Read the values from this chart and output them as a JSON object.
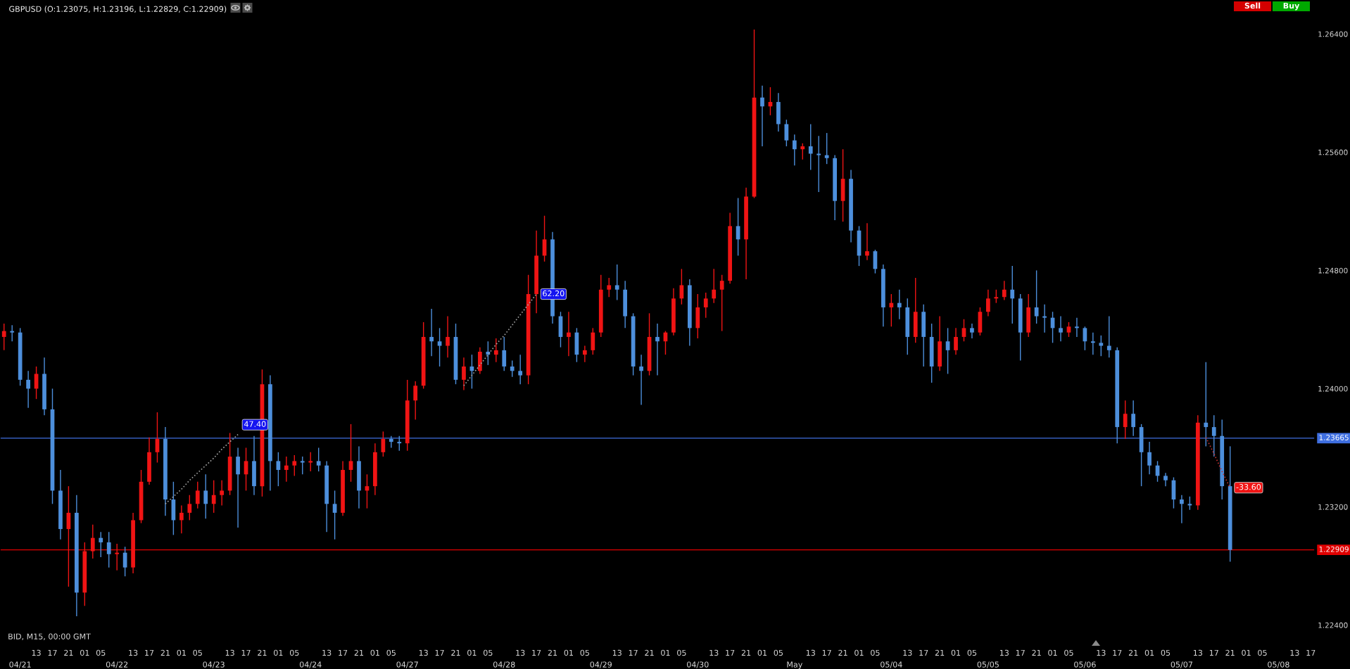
{
  "chart_data": {
    "type": "candlestick",
    "title": "GBPUSD (O:1.23075, H:1.23196, L:1.22829, C:1.22909)",
    "annotations": [
      "BID, M15, 00:00 GMT",
      "Sell",
      "Buy",
      {
        "text": "47.40",
        "y": 1.2369
      },
      {
        "text": "62.20",
        "y": 1.2464
      },
      {
        "text": "-33.60",
        "y": 1.2333
      }
    ],
    "categories": [
      null,
      null,
      "04/21",
      null,
      "13",
      null,
      "17",
      null,
      "21",
      null,
      "01",
      null,
      "05",
      null,
      "04/22",
      null,
      "13",
      null,
      "17",
      null,
      "21",
      null,
      "01",
      null,
      "05",
      null,
      "04/23",
      null,
      "13",
      null,
      "17",
      null,
      "21",
      null,
      "01",
      null,
      "05",
      null,
      "04/24",
      null,
      "13",
      null,
      "17",
      null,
      "21",
      null,
      "01",
      null,
      "05",
      null,
      "04/27",
      null,
      "13",
      null,
      "17",
      null,
      "21",
      null,
      "01",
      null,
      "05",
      null,
      "04/28",
      null,
      "13",
      null,
      "17",
      null,
      "21",
      null,
      "01",
      null,
      "05",
      null,
      "04/29",
      null,
      "13",
      null,
      "17",
      null,
      "21",
      null,
      "01",
      null,
      "05",
      null,
      "04/30",
      null,
      "13",
      null,
      "17",
      null,
      "21",
      null,
      "01",
      null,
      "05",
      null,
      "May",
      null,
      "13",
      null,
      "17",
      null,
      "21",
      null,
      "01",
      null,
      "05",
      null,
      "05/04",
      null,
      "13",
      null,
      "17",
      null,
      "21",
      null,
      "01",
      null,
      "05",
      null,
      "05/05",
      null,
      "13",
      null,
      "17",
      null,
      "21",
      null,
      "01",
      null,
      "05",
      null,
      "05/06",
      null,
      "13",
      null,
      "17",
      null,
      "21",
      null,
      "01",
      null,
      "05",
      null,
      "05/07",
      null,
      "13",
      null,
      "17",
      null,
      "21",
      null,
      "01",
      null,
      "05",
      null,
      "05/08",
      null,
      "13",
      null,
      "17"
    ],
    "ohlc": [
      [
        1.2435,
        1.2444,
        1.2426,
        1.2439
      ],
      [
        1.2439,
        1.2443,
        1.2432,
        1.2438
      ],
      [
        1.2438,
        1.2441,
        1.2402,
        1.2406
      ],
      [
        1.2406,
        1.2412,
        1.2387,
        1.24
      ],
      [
        1.24,
        1.2415,
        1.2393,
        1.241
      ],
      [
        1.241,
        1.2421,
        1.2382,
        1.2386
      ],
      [
        1.2386,
        1.24,
        1.2322,
        1.2331
      ],
      [
        1.2331,
        1.2345,
        1.2298,
        1.2305
      ],
      [
        1.2305,
        1.2334,
        1.2266,
        1.2316
      ],
      [
        1.2316,
        1.2328,
        1.2246,
        1.2262
      ],
      [
        1.2262,
        1.2296,
        1.2253,
        1.229
      ],
      [
        1.229,
        1.2308,
        1.2285,
        1.2299
      ],
      [
        1.2299,
        1.2303,
        1.2286,
        1.2296
      ],
      [
        1.2296,
        1.2303,
        1.2279,
        1.2288
      ],
      [
        1.2288,
        1.2295,
        1.2277,
        1.2289
      ],
      [
        1.2289,
        1.2293,
        1.2273,
        1.2279
      ],
      [
        1.2279,
        1.2316,
        1.2275,
        1.2311
      ],
      [
        1.2311,
        1.2345,
        1.2309,
        1.2337
      ],
      [
        1.2337,
        1.2367,
        1.2335,
        1.2357
      ],
      [
        1.2357,
        1.2384,
        1.235,
        1.2366
      ],
      [
        1.2366,
        1.2374,
        1.2314,
        1.2325
      ],
      [
        1.2325,
        1.2337,
        1.2301,
        1.2311
      ],
      [
        1.2311,
        1.2321,
        1.2302,
        1.2316
      ],
      [
        1.2316,
        1.2328,
        1.2311,
        1.2322
      ],
      [
        1.2322,
        1.2337,
        1.2319,
        1.2331
      ],
      [
        1.2331,
        1.2342,
        1.2312,
        1.2322
      ],
      [
        1.2322,
        1.2338,
        1.2316,
        1.2328
      ],
      [
        1.2328,
        1.2338,
        1.2321,
        1.2331
      ],
      [
        1.2331,
        1.237,
        1.2328,
        1.2354
      ],
      [
        1.2354,
        1.236,
        1.2306,
        1.2342
      ],
      [
        1.2342,
        1.236,
        1.2331,
        1.2351
      ],
      [
        1.2351,
        1.2368,
        1.2328,
        1.2334
      ],
      [
        1.2334,
        1.2413,
        1.2327,
        1.2403
      ],
      [
        1.2403,
        1.2409,
        1.2331,
        1.2351
      ],
      [
        1.2351,
        1.2357,
        1.2334,
        1.2345
      ],
      [
        1.2345,
        1.2354,
        1.2337,
        1.2348
      ],
      [
        1.2348,
        1.2355,
        1.2341,
        1.2351
      ],
      [
        1.2351,
        1.2354,
        1.2342,
        1.235
      ],
      [
        1.235,
        1.2357,
        1.2344,
        1.2351
      ],
      [
        1.2351,
        1.236,
        1.2344,
        1.2348
      ],
      [
        1.2348,
        1.2351,
        1.2303,
        1.2322
      ],
      [
        1.2322,
        1.2331,
        1.2298,
        1.2316
      ],
      [
        1.2316,
        1.2351,
        1.2314,
        1.2345
      ],
      [
        1.2345,
        1.2376,
        1.2337,
        1.2351
      ],
      [
        1.2351,
        1.2361,
        1.2319,
        1.2331
      ],
      [
        1.2331,
        1.2342,
        1.2319,
        1.2334
      ],
      [
        1.2334,
        1.2363,
        1.2328,
        1.2357
      ],
      [
        1.2357,
        1.2371,
        1.2354,
        1.2366
      ],
      [
        1.2366,
        1.2368,
        1.236,
        1.2364
      ],
      [
        1.2364,
        1.2368,
        1.2358,
        1.2363
      ],
      [
        1.2363,
        1.2406,
        1.2358,
        1.2392
      ],
      [
        1.2392,
        1.2405,
        1.2379,
        1.2402
      ],
      [
        1.2402,
        1.2445,
        1.24,
        1.2435
      ],
      [
        1.2435,
        1.2454,
        1.2422,
        1.2432
      ],
      [
        1.2432,
        1.2441,
        1.2415,
        1.2429
      ],
      [
        1.2429,
        1.2449,
        1.2421,
        1.2435
      ],
      [
        1.2435,
        1.2444,
        1.2403,
        1.2406
      ],
      [
        1.2406,
        1.2421,
        1.2399,
        1.2415
      ],
      [
        1.2415,
        1.2423,
        1.24,
        1.2412
      ],
      [
        1.2412,
        1.2428,
        1.241,
        1.2425
      ],
      [
        1.2425,
        1.2432,
        1.2416,
        1.2423
      ],
      [
        1.2423,
        1.2434,
        1.2418,
        1.2426
      ],
      [
        1.2426,
        1.2435,
        1.2412,
        1.2415
      ],
      [
        1.2415,
        1.2419,
        1.2408,
        1.2412
      ],
      [
        1.2412,
        1.2423,
        1.2403,
        1.2409
      ],
      [
        1.2409,
        1.2477,
        1.2403,
        1.2464
      ],
      [
        1.2464,
        1.2507,
        1.2451,
        1.249
      ],
      [
        1.249,
        1.2517,
        1.2486,
        1.2501
      ],
      [
        1.2501,
        1.2506,
        1.2444,
        1.2449
      ],
      [
        1.2449,
        1.2452,
        1.2428,
        1.2435
      ],
      [
        1.2435,
        1.2452,
        1.2422,
        1.2438
      ],
      [
        1.2438,
        1.2441,
        1.2418,
        1.2423
      ],
      [
        1.2423,
        1.2429,
        1.2418,
        1.2426
      ],
      [
        1.2426,
        1.2441,
        1.2423,
        1.2438
      ],
      [
        1.2438,
        1.2477,
        1.2435,
        1.2467
      ],
      [
        1.2467,
        1.2475,
        1.2462,
        1.247
      ],
      [
        1.247,
        1.2484,
        1.246,
        1.2467
      ],
      [
        1.2467,
        1.2473,
        1.2441,
        1.2449
      ],
      [
        1.2449,
        1.2451,
        1.2409,
        1.2415
      ],
      [
        1.2415,
        1.2423,
        1.2389,
        1.2412
      ],
      [
        1.2412,
        1.2451,
        1.2409,
        1.2435
      ],
      [
        1.2435,
        1.2444,
        1.2409,
        1.2432
      ],
      [
        1.2432,
        1.2439,
        1.2423,
        1.2438
      ],
      [
        1.2438,
        1.2468,
        1.2436,
        1.2461
      ],
      [
        1.2461,
        1.2481,
        1.2457,
        1.247
      ],
      [
        1.247,
        1.2474,
        1.2429,
        1.2441
      ],
      [
        1.2441,
        1.2464,
        1.2434,
        1.2455
      ],
      [
        1.2455,
        1.2465,
        1.2448,
        1.2461
      ],
      [
        1.2461,
        1.2481,
        1.2458,
        1.2467
      ],
      [
        1.2467,
        1.2477,
        1.2439,
        1.2473
      ],
      [
        1.2473,
        1.2519,
        1.2471,
        1.251
      ],
      [
        1.251,
        1.2529,
        1.249,
        1.2501
      ],
      [
        1.2501,
        1.2536,
        1.2474,
        1.253
      ],
      [
        1.253,
        1.2643,
        1.2529,
        1.2597
      ],
      [
        1.2597,
        1.2605,
        1.2564,
        1.2591
      ],
      [
        1.2591,
        1.2604,
        1.2585,
        1.2594
      ],
      [
        1.2594,
        1.26,
        1.2574,
        1.2579
      ],
      [
        1.2579,
        1.2582,
        1.2564,
        1.2568
      ],
      [
        1.2568,
        1.2572,
        1.2551,
        1.2562
      ],
      [
        1.2562,
        1.2566,
        1.2555,
        1.2564
      ],
      [
        1.2564,
        1.2579,
        1.2548,
        1.2559
      ],
      [
        1.2559,
        1.2571,
        1.2533,
        1.2558
      ],
      [
        1.2558,
        1.2573,
        1.2552,
        1.2556
      ],
      [
        1.2556,
        1.2558,
        1.2514,
        1.2527
      ],
      [
        1.2527,
        1.2562,
        1.2513,
        1.2542
      ],
      [
        1.2542,
        1.2548,
        1.2499,
        1.2507
      ],
      [
        1.2507,
        1.251,
        1.2483,
        1.249
      ],
      [
        1.249,
        1.2512,
        1.2487,
        1.2493
      ],
      [
        1.2493,
        1.2494,
        1.2478,
        1.2481
      ],
      [
        1.2481,
        1.2484,
        1.2442,
        1.2455
      ],
      [
        1.2455,
        1.2464,
        1.2442,
        1.2458
      ],
      [
        1.2458,
        1.2467,
        1.2447,
        1.2455
      ],
      [
        1.2455,
        1.2461,
        1.2423,
        1.2435
      ],
      [
        1.2435,
        1.2475,
        1.2431,
        1.2452
      ],
      [
        1.2452,
        1.2457,
        1.2415,
        1.2435
      ],
      [
        1.2435,
        1.2444,
        1.2404,
        1.2415
      ],
      [
        1.2415,
        1.2449,
        1.2412,
        1.2432
      ],
      [
        1.2432,
        1.2441,
        1.241,
        1.2426
      ],
      [
        1.2426,
        1.2441,
        1.2423,
        1.2435
      ],
      [
        1.2435,
        1.2447,
        1.2432,
        1.2441
      ],
      [
        1.2441,
        1.2444,
        1.2434,
        1.2438
      ],
      [
        1.2438,
        1.2455,
        1.2436,
        1.2452
      ],
      [
        1.2452,
        1.2467,
        1.2449,
        1.2461
      ],
      [
        1.2461,
        1.2467,
        1.2458,
        1.2462
      ],
      [
        1.2462,
        1.2473,
        1.246,
        1.2467
      ],
      [
        1.2467,
        1.2483,
        1.2444,
        1.2461
      ],
      [
        1.2461,
        1.2464,
        1.2419,
        1.2438
      ],
      [
        1.2438,
        1.2464,
        1.2435,
        1.2455
      ],
      [
        1.2455,
        1.248,
        1.2444,
        1.2449
      ],
      [
        1.2449,
        1.2457,
        1.2438,
        1.2448
      ],
      [
        1.2448,
        1.2452,
        1.2431,
        1.2441
      ],
      [
        1.2441,
        1.2449,
        1.2432,
        1.2438
      ],
      [
        1.2438,
        1.2445,
        1.2435,
        1.2442
      ],
      [
        1.2442,
        1.2448,
        1.2435,
        1.2441
      ],
      [
        1.2441,
        1.2442,
        1.2426,
        1.2432
      ],
      [
        1.2432,
        1.2438,
        1.2423,
        1.2431
      ],
      [
        1.2431,
        1.2436,
        1.2422,
        1.2429
      ],
      [
        1.2429,
        1.2449,
        1.2421,
        1.2426
      ],
      [
        1.2426,
        1.2428,
        1.2363,
        1.2374
      ],
      [
        1.2374,
        1.2392,
        1.2366,
        1.2383
      ],
      [
        1.2383,
        1.2392,
        1.2368,
        1.2374
      ],
      [
        1.2374,
        1.2376,
        1.2334,
        1.2357
      ],
      [
        1.2357,
        1.2364,
        1.2342,
        1.2348
      ],
      [
        1.2348,
        1.2351,
        1.2337,
        1.2341
      ],
      [
        1.2341,
        1.2343,
        1.2334,
        1.2338
      ],
      [
        1.2338,
        1.234,
        1.2319,
        1.2325
      ],
      [
        1.2325,
        1.2328,
        1.2309,
        1.2322
      ],
      [
        1.2322,
        1.2327,
        1.2318,
        1.2321
      ],
      [
        1.2321,
        1.2382,
        1.2318,
        1.2377
      ],
      [
        1.2377,
        1.2418,
        1.2361,
        1.2374
      ],
      [
        1.2374,
        1.2382,
        1.2354,
        1.2368
      ],
      [
        1.2368,
        1.2379,
        1.2325,
        1.2334
      ],
      [
        1.2334,
        1.2361,
        1.22829,
        1.22909
      ],
      null,
      null,
      null,
      null,
      null,
      null,
      null,
      null,
      null,
      null
    ],
    "colors": [
      "#f01414",
      "#4d8fdc",
      "#4d8fdc",
      "#4d8fdc",
      "#f01414",
      "#4d8fdc",
      "#4d8fdc",
      "#4d8fdc",
      "#f01414",
      "#4d8fdc",
      "#f01414",
      "#f01414",
      "#4d8fdc",
      "#4d8fdc",
      "#f01414",
      "#4d8fdc",
      "#f01414",
      "#f01414",
      "#f01414",
      "#f01414",
      "#4d8fdc",
      "#4d8fdc",
      "#f01414",
      "#f01414",
      "#f01414",
      "#4d8fdc",
      "#f01414",
      "#f01414",
      "#f01414",
      "#4d8fdc",
      "#f01414",
      "#4d8fdc",
      "#f01414",
      "#4d8fdc",
      "#4d8fdc",
      "#f01414",
      "#f01414",
      "#4d8fdc",
      "#f01414",
      "#4d8fdc",
      "#4d8fdc",
      "#4d8fdc",
      "#f01414",
      "#f01414",
      "#4d8fdc",
      "#f01414",
      "#f01414",
      "#f01414",
      "#4d8fdc",
      "#4d8fdc",
      "#f01414",
      "#f01414",
      "#f01414",
      "#4d8fdc",
      "#4d8fdc",
      "#f01414",
      "#4d8fdc",
      "#f01414",
      "#4d8fdc",
      "#f01414",
      "#4d8fdc",
      "#f01414",
      "#4d8fdc",
      "#4d8fdc",
      "#4d8fdc",
      "#f01414",
      "#f01414",
      "#f01414",
      "#4d8fdc",
      "#4d8fdc",
      "#f01414",
      "#4d8fdc",
      "#f01414",
      "#f01414",
      "#f01414",
      "#f01414",
      "#4d8fdc",
      "#4d8fdc",
      "#4d8fdc",
      "#4d8fdc",
      "#f01414",
      "#4d8fdc",
      "#f01414",
      "#f01414",
      "#f01414",
      "#4d8fdc",
      "#f01414",
      "#f01414",
      "#f01414",
      "#f01414",
      "#f01414",
      "#4d8fdc",
      "#f01414",
      "#f01414",
      "#4d8fdc",
      "#f01414",
      "#4d8fdc",
      "#4d8fdc",
      "#4d8fdc",
      "#f01414",
      "#4d8fdc",
      "#4d8fdc",
      "#4d8fdc",
      "#4d8fdc",
      "#f01414",
      "#4d8fdc",
      "#4d8fdc",
      "#f01414",
      "#4d8fdc",
      "#4d8fdc",
      "#f01414",
      "#4d8fdc",
      "#4d8fdc",
      "#f01414",
      "#4d8fdc",
      "#4d8fdc",
      "#f01414",
      "#4d8fdc",
      "#f01414",
      "#f01414",
      "#4d8fdc",
      "#f01414",
      "#f01414",
      "#f01414",
      "#f01414",
      "#4d8fdc",
      "#4d8fdc",
      "#f01414",
      "#4d8fdc",
      "#4d8fdc",
      "#4d8fdc",
      "#4d8fdc",
      "#f01414",
      "#4d8fdc",
      "#4d8fdc",
      "#4d8fdc",
      "#4d8fdc",
      "#4d8fdc",
      "#4d8fdc",
      "#f01414",
      "#4d8fdc",
      "#4d8fdc",
      "#4d8fdc",
      "#4d8fdc",
      "#4d8fdc",
      "#4d8fdc",
      "#4d8fdc",
      "#4d8fdc",
      "#f01414",
      "#4d8fdc",
      "#4d8fdc",
      "#4d8fdc",
      "#4d8fdc",
      null,
      null,
      null,
      null,
      null,
      null,
      null,
      null,
      null,
      null
    ],
    "series": [
      {
        "type": "line",
        "color": "#a0a0a0",
        "line_style": "dotted",
        "values": [
          null,
          null,
          null,
          null,
          null,
          null,
          null,
          null,
          null,
          null,
          null,
          null,
          null,
          null,
          null,
          null,
          null,
          null,
          null,
          null,
          1.2322,
          1.2327,
          1.2332,
          1.2338,
          1.2343,
          1.2348,
          1.2353,
          1.2359,
          1.2364,
          1.2369,
          null,
          null,
          null,
          null,
          null,
          null,
          null,
          null,
          null,
          null,
          null,
          null,
          null,
          null,
          null,
          null,
          null,
          null,
          null,
          null,
          null,
          null,
          null,
          null,
          null,
          null,
          null,
          null,
          null,
          null,
          null,
          null,
          null,
          null,
          null,
          null,
          null,
          null,
          null,
          null,
          null,
          null,
          null,
          null,
          null,
          null,
          null,
          null,
          null,
          null,
          null,
          null,
          null,
          null,
          null,
          null,
          null,
          null,
          null,
          null,
          null,
          null,
          null,
          null,
          null,
          null,
          null,
          null,
          null,
          null,
          null,
          null,
          null,
          null,
          null,
          null,
          null,
          null,
          null,
          null,
          null,
          null,
          null,
          null,
          null,
          null,
          null,
          null,
          null,
          null,
          null,
          null,
          null,
          null,
          null,
          null,
          null,
          null,
          null,
          null,
          null,
          null,
          null,
          null,
          null,
          null,
          null,
          null,
          null,
          null,
          null,
          null,
          null,
          null,
          null,
          null,
          null,
          null,
          null,
          null,
          null,
          null,
          null,
          null,
          null,
          null,
          null,
          null,
          null,
          null,
          null,
          null,
          null
        ]
      },
      {
        "type": "line",
        "color": "#a0a0a0",
        "line_style": "dotted",
        "values": [
          null,
          null,
          null,
          null,
          null,
          null,
          null,
          null,
          null,
          null,
          null,
          null,
          null,
          null,
          null,
          null,
          null,
          null,
          null,
          null,
          null,
          null,
          null,
          null,
          null,
          null,
          null,
          null,
          null,
          null,
          null,
          null,
          null,
          null,
          null,
          null,
          null,
          null,
          null,
          null,
          null,
          null,
          null,
          null,
          null,
          null,
          null,
          null,
          null,
          null,
          null,
          null,
          null,
          null,
          null,
          null,
          null,
          1.2402,
          1.2409,
          1.2416,
          1.2423,
          1.243,
          1.2436,
          1.2443,
          1.245,
          1.2457,
          1.2464,
          null,
          null,
          null,
          null,
          null,
          null,
          null,
          null,
          null,
          null,
          null,
          null,
          null,
          null,
          null,
          null,
          null,
          null,
          null,
          null,
          null,
          null,
          null,
          null,
          null,
          null,
          null,
          null,
          null,
          null,
          null,
          null,
          null,
          null,
          null,
          null,
          null,
          null,
          null,
          null,
          null,
          null,
          null,
          null,
          null,
          null,
          null,
          null,
          null,
          null,
          null,
          null,
          null,
          null,
          null,
          null,
          null,
          null,
          null,
          null,
          null,
          null,
          null,
          null,
          null,
          null,
          null,
          null,
          null,
          null,
          null,
          null,
          null,
          null,
          null,
          null,
          null,
          null,
          null,
          null,
          null,
          null,
          null,
          null,
          null,
          null,
          null,
          null,
          null,
          null,
          null,
          null,
          null,
          null,
          null,
          null
        ]
      },
      {
        "type": "line",
        "color": "#c03030",
        "line_style": "dotted",
        "values": [
          null,
          null,
          null,
          null,
          null,
          null,
          null,
          null,
          null,
          null,
          null,
          null,
          null,
          null,
          null,
          null,
          null,
          null,
          null,
          null,
          null,
          null,
          null,
          null,
          null,
          null,
          null,
          null,
          null,
          null,
          null,
          null,
          null,
          null,
          null,
          null,
          null,
          null,
          null,
          null,
          null,
          null,
          null,
          null,
          null,
          null,
          null,
          null,
          null,
          null,
          null,
          null,
          null,
          null,
          null,
          null,
          null,
          null,
          null,
          null,
          null,
          null,
          null,
          null,
          null,
          null,
          null,
          null,
          null,
          null,
          null,
          null,
          null,
          null,
          null,
          null,
          null,
          null,
          null,
          null,
          null,
          null,
          null,
          null,
          null,
          null,
          null,
          null,
          null,
          null,
          null,
          null,
          null,
          null,
          null,
          null,
          null,
          null,
          null,
          null,
          null,
          null,
          null,
          null,
          null,
          null,
          null,
          null,
          null,
          null,
          null,
          null,
          null,
          null,
          null,
          null,
          null,
          null,
          null,
          null,
          null,
          null,
          null,
          null,
          null,
          null,
          null,
          null,
          null,
          null,
          null,
          null,
          null,
          null,
          null,
          null,
          null,
          null,
          null,
          null,
          null,
          null,
          null,
          null,
          null,
          null,
          null,
          null,
          null,
          1.2367,
          1.2356,
          1.2344,
          1.2333,
          null,
          null,
          null,
          null,
          null,
          null,
          null,
          null,
          null,
          null
        ]
      }
    ],
    "ylim": [
      1.2226,
      1.2663
    ],
    "yticks": [
      {
        "value": 1.224,
        "label": "1.22400"
      },
      {
        "value": 1.232,
        "label": "1.23200"
      },
      {
        "value": 1.24,
        "label": "1.24000"
      },
      {
        "value": 1.248,
        "label": "1.24800"
      },
      {
        "value": 1.256,
        "label": "1.25600"
      },
      {
        "value": 1.264,
        "label": "1.26400"
      }
    ],
    "ref_lines": [
      {
        "axis": "y",
        "value": 1.23665,
        "label": "1.23665",
        "color": "#3f6fe0"
      },
      {
        "axis": "y",
        "value": 1.22909,
        "label": "1.22909",
        "color": "#e00000"
      }
    ]
  }
}
